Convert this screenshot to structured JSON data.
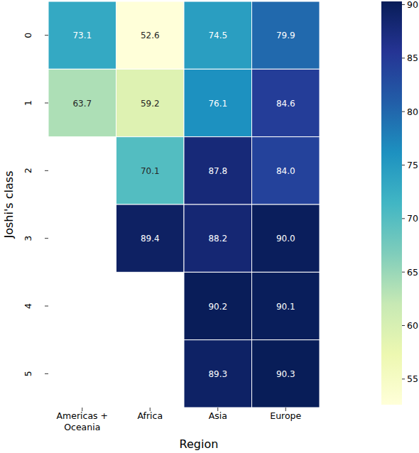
{
  "chart_data": {
    "type": "heatmap",
    "x_label": "Region",
    "y_label": "Joshi's class",
    "categories": [
      "Americas + Oceania",
      "Africa",
      "Asia",
      "Europe"
    ],
    "rows": [
      0,
      1,
      2,
      3,
      4,
      5
    ],
    "cells": [
      [
        73.1,
        52.6,
        74.5,
        79.9
      ],
      [
        63.7,
        59.2,
        76.1,
        84.6
      ],
      [
        null,
        70.1,
        87.8,
        84.0
      ],
      [
        null,
        89.4,
        88.2,
        90.0
      ],
      [
        null,
        null,
        90.2,
        90.1
      ],
      [
        null,
        null,
        89.3,
        90.3
      ]
    ],
    "value_labels": [
      [
        "73.1",
        "52.6",
        "74.5",
        "79.9"
      ],
      [
        "63.7",
        "59.2",
        "76.1",
        "84.6"
      ],
      [
        null,
        "70.1",
        "87.8",
        "84.0"
      ],
      [
        null,
        "89.4",
        "88.2",
        "90.0"
      ],
      [
        null,
        null,
        "90.2",
        "90.1"
      ],
      [
        null,
        null,
        "89.3",
        "90.3"
      ]
    ],
    "data_labels": true,
    "color": "YlGnBu",
    "color_range": [
      52.6,
      90.3
    ],
    "color_ticks": [
      55,
      60,
      65,
      70,
      75,
      80,
      85,
      90
    ]
  }
}
